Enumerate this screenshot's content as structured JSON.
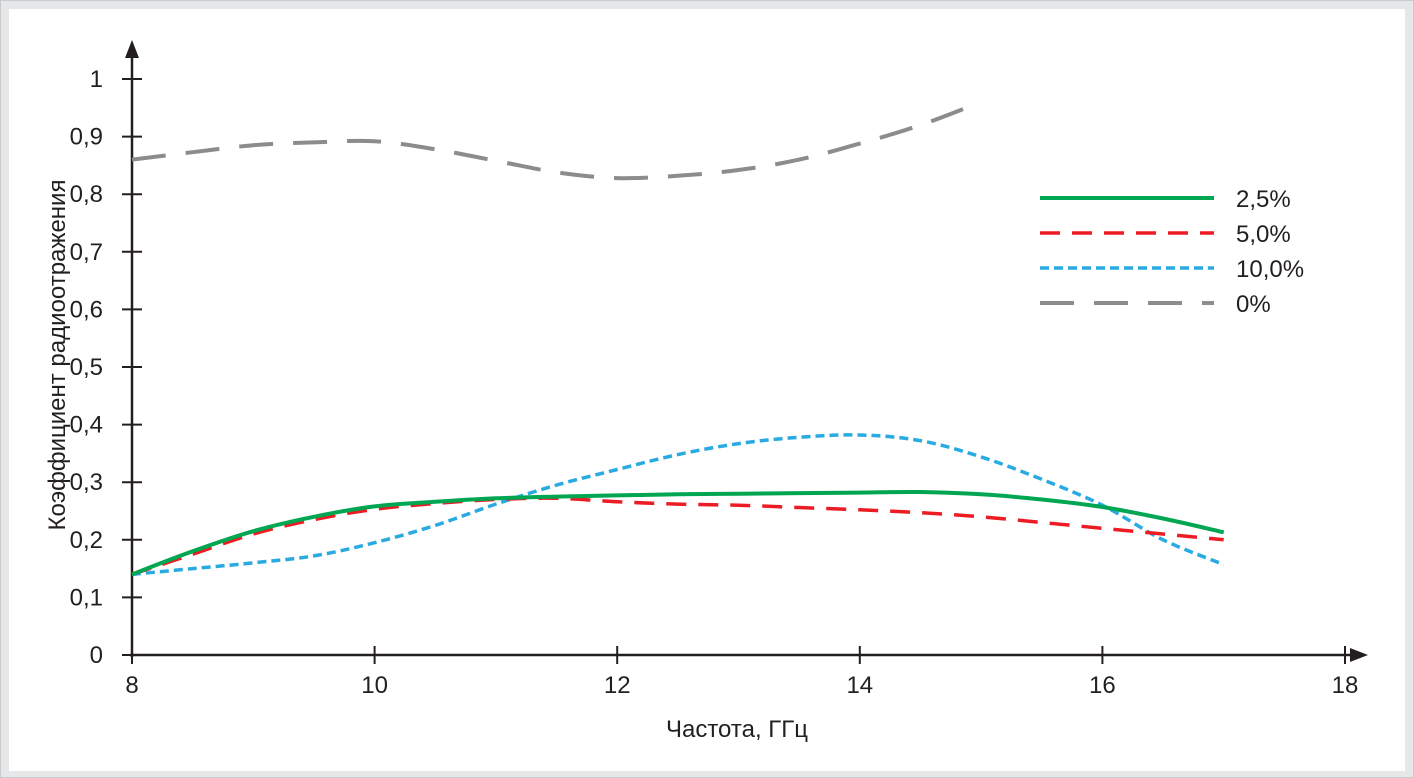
{
  "chart_data": {
    "type": "line",
    "title": "",
    "xlabel": "Частота, ГГц",
    "ylabel": "Коэффициент радиоотражения",
    "xlim": [
      8,
      18
    ],
    "ylim": [
      0,
      1
    ],
    "x_ticks": [
      8,
      10,
      12,
      14,
      16,
      18
    ],
    "x_tick_labels": [
      "8",
      "10",
      "12",
      "14",
      "16",
      "18"
    ],
    "y_ticks": [
      0,
      0.1,
      0.2,
      0.3,
      0.4,
      0.5,
      0.6,
      0.7,
      0.8,
      0.9,
      1
    ],
    "y_tick_labels": [
      "0",
      "0,1",
      "0,2",
      "0,3",
      "0,4",
      "0,5",
      "0,6",
      "0,7",
      "0,8",
      "0,9",
      "1"
    ],
    "grid": false,
    "legend_position": "top-right",
    "series": [
      {
        "name": "2,5%",
        "color": "#00a651",
        "style": "solid",
        "x": [
          8,
          8.5,
          9,
          9.5,
          10,
          10.5,
          11,
          11.5,
          12,
          12.5,
          13,
          13.5,
          14,
          14.5,
          15,
          15.5,
          16,
          16.5,
          17
        ],
        "y": [
          0.14,
          0.18,
          0.215,
          0.24,
          0.258,
          0.266,
          0.272,
          0.275,
          0.277,
          0.279,
          0.28,
          0.281,
          0.282,
          0.283,
          0.279,
          0.27,
          0.257,
          0.237,
          0.213
        ]
      },
      {
        "name": "5,0%",
        "color": "#ed1c24",
        "style": "dashed",
        "x": [
          8,
          8.5,
          9,
          9.5,
          10,
          10.5,
          11,
          11.5,
          12,
          12.5,
          13,
          13.5,
          14,
          14.5,
          15,
          15.5,
          16,
          16.5,
          17
        ],
        "y": [
          0.14,
          0.175,
          0.21,
          0.235,
          0.253,
          0.263,
          0.27,
          0.272,
          0.266,
          0.262,
          0.26,
          0.256,
          0.252,
          0.247,
          0.24,
          0.23,
          0.22,
          0.21,
          0.2
        ]
      },
      {
        "name": "10,0%",
        "color": "#29abe2",
        "style": "dotted",
        "x": [
          8,
          8.5,
          9,
          9.5,
          10,
          10.5,
          11,
          11.5,
          12,
          12.5,
          13,
          13.5,
          14,
          14.5,
          15,
          15.5,
          16,
          16.5,
          17
        ],
        "y": [
          0.14,
          0.15,
          0.16,
          0.172,
          0.195,
          0.225,
          0.262,
          0.295,
          0.322,
          0.348,
          0.367,
          0.378,
          0.382,
          0.372,
          0.344,
          0.305,
          0.26,
          0.2,
          0.157
        ]
      },
      {
        "name": "0%",
        "color": "#8c8c8c",
        "style": "long-dashed",
        "x": [
          8,
          8.5,
          9,
          9.5,
          10,
          10.5,
          11,
          11.5,
          12,
          12.5,
          13,
          13.5,
          14,
          14.5,
          15
        ],
        "y": [
          0.86,
          0.873,
          0.885,
          0.89,
          0.892,
          0.878,
          0.858,
          0.838,
          0.828,
          0.832,
          0.842,
          0.86,
          0.888,
          0.92,
          0.96
        ]
      }
    ]
  }
}
